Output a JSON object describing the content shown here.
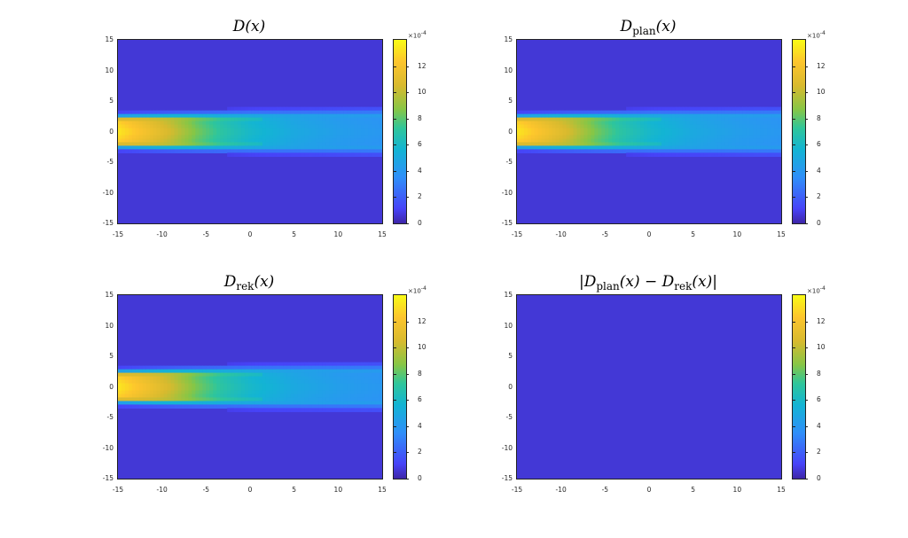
{
  "figure": {
    "panels": [
      {
        "id": "d",
        "title_main": "D",
        "title_sub": "",
        "title_suffix": "(x)",
        "plume": true
      },
      {
        "id": "dplan",
        "title_main": "D",
        "title_sub": "plan",
        "title_suffix": "(x)",
        "plume": true
      },
      {
        "id": "drek",
        "title_main": "D",
        "title_sub": "rek",
        "title_suffix": "(x)",
        "plume": true
      },
      {
        "id": "diff",
        "title_main": "|D",
        "title_sub": "plan",
        "title_suffix": "(x) − D",
        "title_sub2": "rek",
        "title_suffix2": "(x)|",
        "plume": false
      }
    ]
  },
  "chart_data": {
    "type": "heatmap",
    "xlim": [
      -15,
      15
    ],
    "ylim": [
      -15,
      15
    ],
    "xticks": [
      "-15",
      "-10",
      "-5",
      "0",
      "5",
      "10",
      "15"
    ],
    "yticks": [
      "15",
      "10",
      "5",
      "0",
      "-5",
      "-10",
      "-15"
    ],
    "colorbar": {
      "scale_label": "×10",
      "scale_exponent": "-4",
      "range": [
        0,
        14
      ],
      "ticks": [
        "12",
        "10",
        "8",
        "6",
        "4",
        "2",
        "0"
      ]
    },
    "colors": {
      "background": "#4338d6",
      "low": "#3e26a8",
      "high": "#f9fb15"
    },
    "plume_profile": {
      "x": [
        -15,
        -12,
        -9,
        -6,
        -3,
        0,
        5,
        10,
        15
      ],
      "peak_value_e4": [
        13.5,
        12.0,
        10.5,
        8.5,
        7.0,
        6.0,
        5.0,
        4.4,
        4.0
      ],
      "half_width_y": [
        2.0,
        2.1,
        2.2,
        2.3,
        2.4,
        2.5,
        2.6,
        2.7,
        2.8
      ]
    }
  }
}
